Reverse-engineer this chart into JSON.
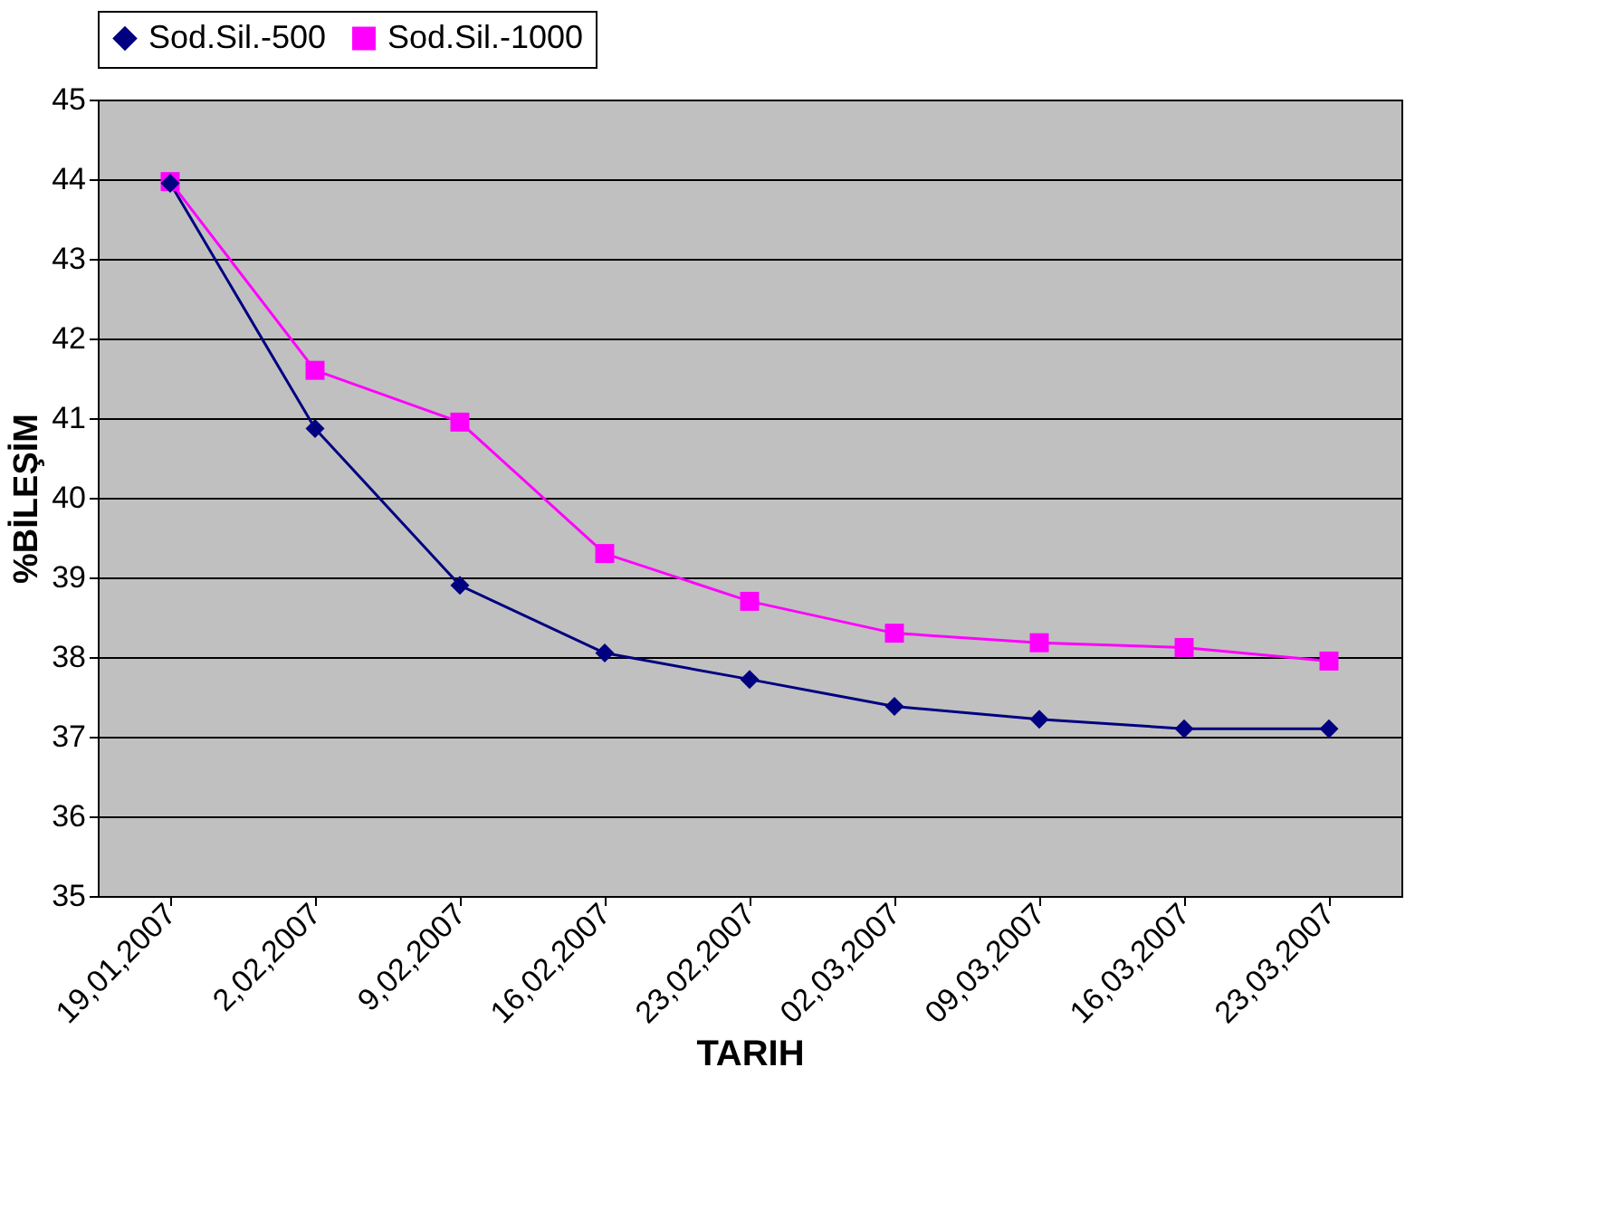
{
  "chart_data": {
    "type": "line",
    "xlabel": "TARIH",
    "ylabel": "%BİLEŞİM",
    "categories": [
      "19,01,2007",
      "2,02,2007",
      "9,02,2007",
      "16,02,2007",
      "23,02,2007",
      "02,03,2007",
      "09,03,2007",
      "16,03,2007",
      "23,03,2007"
    ],
    "series": [
      {
        "name": "Sod.Sil.-500",
        "color": "#000080",
        "marker": "diamond",
        "values": [
          43.95,
          40.87,
          38.9,
          38.05,
          37.72,
          37.38,
          37.22,
          37.1,
          37.1
        ]
      },
      {
        "name": "Sod.Sil.-1000",
        "color": "#ff00ff",
        "marker": "square",
        "values": [
          43.97,
          41.6,
          40.95,
          39.3,
          38.7,
          38.3,
          38.18,
          38.12,
          37.95
        ]
      }
    ],
    "ylim": [
      35,
      45
    ],
    "yticks": [
      35,
      36,
      37,
      38,
      39,
      40,
      41,
      42,
      43,
      44,
      45
    ],
    "grid": "y",
    "legend": "top",
    "line_style": "solid"
  }
}
